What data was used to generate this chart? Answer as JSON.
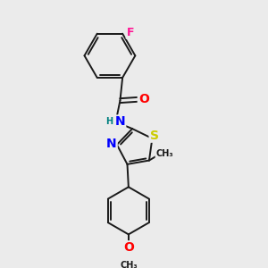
{
  "bg_color": "#ebebeb",
  "bond_color": "#1a1a1a",
  "bond_width": 1.4,
  "atom_colors": {
    "F": "#ff1493",
    "O": "#ff0000",
    "N": "#0000ff",
    "S": "#cccc00",
    "H": "#008080",
    "C": "#1a1a1a"
  },
  "font_size": 8,
  "figsize": [
    3.0,
    3.0
  ],
  "dpi": 100
}
